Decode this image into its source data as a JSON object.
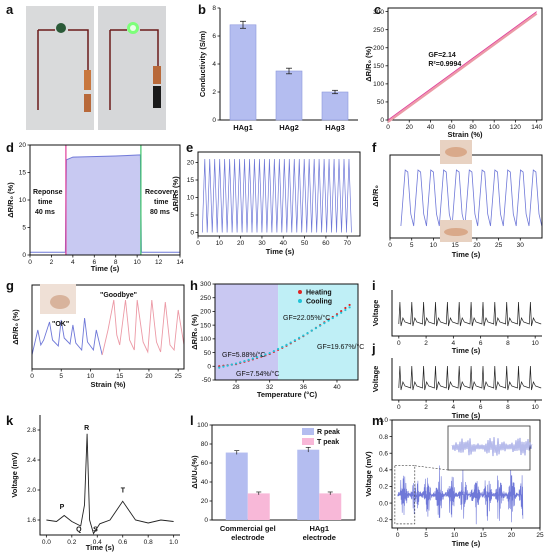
{
  "panels": {
    "a": "a",
    "b": "b",
    "c": "c",
    "d": "d",
    "e": "e",
    "f": "f",
    "g": "g",
    "h": "h",
    "i": "i",
    "j": "j",
    "k": "k",
    "l": "l",
    "m": "m"
  },
  "colors": {
    "bar_blue": "#b4bdf0",
    "bar_pink": "#f8b8d8",
    "line_blue": "#6f78d8",
    "line_pink": "#ec9aa6",
    "fit_pink": "#e0409a",
    "heating": "#e02424",
    "cooling": "#1fc4d8",
    "green_line": "#3ec66a"
  },
  "chart_data": [
    {
      "panel": "b",
      "type": "bar",
      "categories": [
        "HAg1",
        "HAg2",
        "HAg3"
      ],
      "values": [
        6.8,
        3.5,
        2.0
      ],
      "errors": [
        0.25,
        0.2,
        0.12
      ],
      "ylabel": "Conductivity (S/m)",
      "yticks": [
        "0",
        "2",
        "4",
        "6",
        "8"
      ],
      "ylim": [
        0,
        8
      ]
    },
    {
      "panel": "c",
      "type": "line",
      "xlabel": "Strain (%)",
      "ylabel": "ΔR/R₀ (%)",
      "x": [
        0,
        140
      ],
      "y": [
        0,
        300
      ],
      "xticks": [
        "0",
        "20",
        "40",
        "60",
        "80",
        "100",
        "120",
        "140"
      ],
      "yticks": [
        "0",
        "50",
        "100",
        "150",
        "200",
        "250",
        "300"
      ],
      "xlim": [
        0,
        145
      ],
      "ylim": [
        0,
        310
      ],
      "annotations": [
        "GF=2.14",
        "R²=0.9994"
      ]
    },
    {
      "panel": "d",
      "type": "area",
      "xlabel": "Time (s)",
      "ylabel": "ΔR/R₀ (%)",
      "x": [
        0,
        3.3,
        3.4,
        4,
        8,
        10.3,
        10.4,
        14
      ],
      "y": [
        0.5,
        0.5,
        17.3,
        17.8,
        18.0,
        18.2,
        0.5,
        0.5
      ],
      "xticks": [
        "0",
        "2",
        "4",
        "6",
        "8",
        "10",
        "12",
        "14"
      ],
      "yticks": [
        "0",
        "5",
        "10",
        "15",
        "20"
      ],
      "xlim": [
        0,
        14
      ],
      "ylim": [
        0,
        20
      ],
      "annotations": [
        "Reponse",
        "time",
        "40 ms",
        "Recovery",
        "time",
        "80 ms"
      ]
    },
    {
      "panel": "e",
      "type": "line",
      "xlabel": "Time (s)",
      "ylabel": "ΔR/R₀ (%)",
      "cycles": 30,
      "amplitude": 21,
      "xticks": [
        "0",
        "10",
        "20",
        "30",
        "40",
        "50",
        "60",
        "70"
      ],
      "yticks": [
        "0",
        "5",
        "10",
        "15",
        "20"
      ],
      "xlim": [
        0,
        76
      ],
      "ylim": [
        -1,
        23
      ]
    },
    {
      "panel": "f",
      "type": "line",
      "xlabel": "Time (s)",
      "ylabel": "ΔR/R₀",
      "cycles": 11,
      "xticks": [
        "0",
        "5",
        "10",
        "15",
        "20",
        "25",
        "30"
      ],
      "xlim": [
        0,
        35
      ]
    },
    {
      "panel": "g",
      "type": "line",
      "xlabel": "Strain (%)",
      "ylabel": "ΔR/R₀ (%)",
      "xticks": [
        "0",
        "5",
        "10",
        "15",
        "20",
        "25"
      ],
      "xlim": [
        0,
        26
      ],
      "annotations": [
        "\"OK\"",
        "\"Goodbye\""
      ]
    },
    {
      "panel": "h",
      "type": "scatter",
      "xlabel": "Temperature (°C)",
      "ylabel": "ΔR/R₀ (%)",
      "series": [
        {
          "name": "Heating",
          "x": [
            26,
            28,
            30,
            32,
            34,
            36,
            38,
            40,
            42
          ],
          "y": [
            0,
            8,
            25,
            45,
            75,
            110,
            150,
            190,
            235
          ]
        },
        {
          "name": "Cooling",
          "x": [
            26,
            28,
            30,
            32,
            34,
            36,
            38,
            40,
            42
          ],
          "y": [
            -5,
            10,
            28,
            48,
            78,
            112,
            148,
            185,
            225
          ]
        }
      ],
      "xticks": [
        "28",
        "32",
        "36",
        "40"
      ],
      "yticks": [
        "-50",
        "0",
        "50",
        "100",
        "150",
        "200",
        "250",
        "300"
      ],
      "xlim": [
        25.5,
        42.5
      ],
      "ylim": [
        -50,
        300
      ],
      "annotations": [
        "GF=22.05%/°C",
        "GF=19.67%/°C",
        "GF=5.88%/°C",
        "GF=7.54%/°C"
      ]
    },
    {
      "panel": "i",
      "type": "line",
      "xlabel": "Time (s)",
      "ylabel": "Voltage",
      "xticks": [
        "0",
        "2",
        "4",
        "6",
        "8",
        "10"
      ],
      "xlim": [
        -0.5,
        10.5
      ]
    },
    {
      "panel": "j",
      "type": "line",
      "xlabel": "Time (s)",
      "ylabel": "Voltage",
      "xticks": [
        "0",
        "2",
        "4",
        "6",
        "8",
        "10"
      ],
      "xlim": [
        -0.5,
        10.5
      ]
    },
    {
      "panel": "k",
      "type": "line",
      "xlabel": "Time (s)",
      "ylabel": "Voltage (mV)",
      "xticks": [
        "0.0",
        "0.2",
        "0.4",
        "0.6",
        "0.8",
        "1.0"
      ],
      "yticks": [
        "1.6",
        "2.0",
        "2.4",
        "2.8"
      ],
      "xlim": [
        -0.05,
        1.05
      ],
      "ylim": [
        1.4,
        3.0
      ],
      "annotations": [
        "P",
        "Q",
        "R",
        "S",
        "T"
      ]
    },
    {
      "panel": "l",
      "type": "bar",
      "categories": [
        "Commercial gel electrode",
        "HAg1 electrode"
      ],
      "series": [
        {
          "name": "R peak",
          "values": [
            71,
            74
          ],
          "errors": [
            2,
            2.5
          ]
        },
        {
          "name": "T peak",
          "values": [
            28,
            28
          ],
          "errors": [
            1.5,
            1.5
          ]
        }
      ],
      "ylabel": "ΔU/U₀(%)",
      "yticks": [
        "0",
        "20",
        "40",
        "60",
        "80",
        "100"
      ],
      "ylim": [
        0,
        100
      ]
    },
    {
      "panel": "m",
      "type": "line",
      "xlabel": "Time (s)",
      "ylabel": "Voltage (mV)",
      "xticks": [
        "0",
        "5",
        "10",
        "15",
        "20",
        "25"
      ],
      "yticks": [
        "-0.2",
        "0.0",
        "0.2",
        "0.4",
        "0.6",
        "0.8",
        "1.0"
      ],
      "xlim": [
        -1,
        25
      ],
      "ylim": [
        -0.3,
        1.0
      ]
    }
  ]
}
